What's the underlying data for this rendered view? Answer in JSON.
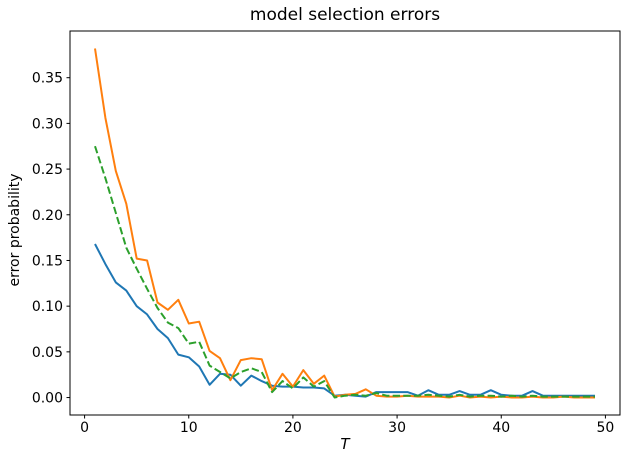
{
  "figure_background": "#ffffff",
  "chart_data": {
    "type": "line",
    "title": "model selection errors",
    "xlabel": "T",
    "ylabel": "error probability",
    "grid": false,
    "legend": null,
    "xlim": [
      -1.4,
      51.4
    ],
    "ylim": [
      -0.0191,
      0.4011
    ],
    "xticks": [
      0,
      10,
      20,
      30,
      40,
      50
    ],
    "ytick_labels": [
      "0.00",
      "0.05",
      "0.10",
      "0.15",
      "0.20",
      "0.25",
      "0.30",
      "0.35"
    ],
    "x": [
      1,
      2,
      3,
      4,
      5,
      6,
      7,
      8,
      9,
      10,
      11,
      12,
      13,
      14,
      15,
      16,
      17,
      18,
      19,
      20,
      21,
      22,
      23,
      24,
      25,
      26,
      27,
      28,
      29,
      30,
      31,
      32,
      33,
      34,
      35,
      36,
      37,
      38,
      39,
      40,
      41,
      42,
      43,
      44,
      45,
      46,
      47,
      48,
      49
    ],
    "series": [
      {
        "name": "blue",
        "color": "#1f77b4",
        "style": "solid",
        "values": [
          0.168,
          0.146,
          0.126,
          0.117,
          0.1,
          0.091,
          0.075,
          0.065,
          0.047,
          0.044,
          0.034,
          0.014,
          0.026,
          0.025,
          0.013,
          0.024,
          0.018,
          0.013,
          0.012,
          0.012,
          0.011,
          0.011,
          0.01,
          0.002,
          0.003,
          0.002,
          0.001,
          0.006,
          0.006,
          0.006,
          0.006,
          0.002,
          0.008,
          0.003,
          0.003,
          0.007,
          0.003,
          0.003,
          0.008,
          0.003,
          0.002,
          0.002,
          0.007,
          0.002,
          0.002,
          0.002,
          0.002,
          0.002,
          0.002
        ]
      },
      {
        "name": "orange",
        "color": "#ff7f0e",
        "style": "solid",
        "values": [
          0.382,
          0.306,
          0.248,
          0.212,
          0.152,
          0.15,
          0.104,
          0.096,
          0.107,
          0.081,
          0.083,
          0.051,
          0.043,
          0.019,
          0.041,
          0.043,
          0.042,
          0.008,
          0.026,
          0.012,
          0.03,
          0.015,
          0.024,
          0.001,
          0.003,
          0.004,
          0.009,
          0.002,
          0.001,
          0.001,
          0.002,
          0.001,
          0.001,
          0.001,
          0.0,
          0.002,
          0.0,
          0.001,
          0.0,
          0.001,
          0.0,
          0.0,
          0.001,
          0.0,
          0.0,
          0.001,
          0.0,
          0.0,
          0.0
        ]
      },
      {
        "name": "green",
        "color": "#2ca02c",
        "style": "dashed",
        "values": [
          0.275,
          0.24,
          0.202,
          0.164,
          0.141,
          0.119,
          0.098,
          0.082,
          0.076,
          0.059,
          0.061,
          0.035,
          0.028,
          0.021,
          0.028,
          0.032,
          0.028,
          0.006,
          0.018,
          0.01,
          0.022,
          0.012,
          0.018,
          0.0,
          0.002,
          0.003,
          0.002,
          0.005,
          0.002,
          0.002,
          0.002,
          0.002,
          0.003,
          0.002,
          0.001,
          0.003,
          0.001,
          0.002,
          0.002,
          0.001,
          0.002,
          0.001,
          0.002,
          0.001,
          0.001,
          0.001,
          0.001,
          0.001,
          0.001
        ]
      }
    ]
  }
}
